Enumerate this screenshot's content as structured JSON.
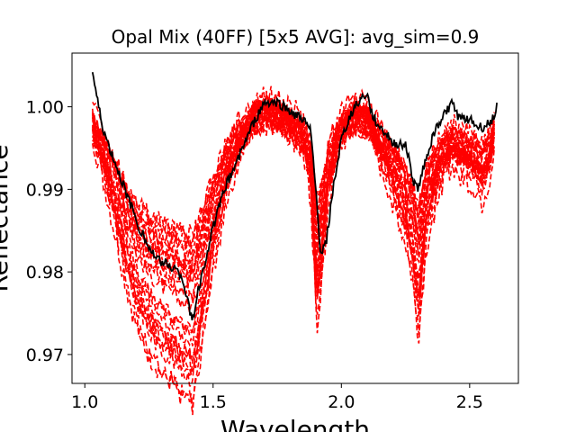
{
  "chart_data": {
    "type": "line",
    "title": "Opal Mix (40FF) [5x5 AVG]: avg_sim=0.9",
    "xlabel": "Wavelength",
    "ylabel": "Reflectance",
    "xlim": [
      0.95,
      2.69
    ],
    "ylim": [
      0.9665,
      1.0065
    ],
    "xticks": [
      1.0,
      1.5,
      2.0,
      2.5
    ],
    "xtick_labels": [
      "1.0",
      "1.5",
      "2.0",
      "2.5"
    ],
    "yticks": [
      0.97,
      0.98,
      0.99,
      1.0
    ],
    "ytick_labels": [
      "0.97",
      "0.98",
      "0.99",
      "1.00"
    ],
    "grid": false,
    "colors": {
      "reference": "#000000",
      "samples": "#ff0000"
    },
    "series": [
      {
        "style": "solid",
        "color": "#000000",
        "x": [
          1.03,
          1.05,
          1.07,
          1.09,
          1.12,
          1.15,
          1.18,
          1.21,
          1.25,
          1.28,
          1.32,
          1.35,
          1.38,
          1.4,
          1.42,
          1.44,
          1.47,
          1.5,
          1.55,
          1.6,
          1.65,
          1.7,
          1.75,
          1.8,
          1.85,
          1.88,
          1.9,
          1.92,
          1.94,
          1.97,
          2.0,
          2.03,
          2.06,
          2.1,
          2.12,
          2.15,
          2.18,
          2.21,
          2.25,
          2.28,
          2.3,
          2.33,
          2.37,
          2.4,
          2.43,
          2.46,
          2.5,
          2.53,
          2.56,
          2.59,
          2.61
        ],
        "y": [
          1.0042,
          1.0005,
          0.9975,
          0.9955,
          0.993,
          0.9905,
          0.988,
          0.9855,
          0.983,
          0.9815,
          0.981,
          0.9805,
          0.9795,
          0.9765,
          0.974,
          0.9775,
          0.9815,
          0.9855,
          0.9905,
          0.994,
          0.9975,
          1.0005,
          1.0005,
          0.9995,
          0.9985,
          0.997,
          0.99,
          0.982,
          0.9835,
          0.9905,
          0.996,
          0.9985,
          1.0005,
          1.0015,
          0.999,
          0.9975,
          0.9965,
          0.9955,
          0.9955,
          0.991,
          0.99,
          0.994,
          0.9975,
          0.999,
          1.0005,
          0.9985,
          0.9985,
          0.9975,
          0.9975,
          0.9985,
          1.0008
        ]
      }
    ]
  }
}
